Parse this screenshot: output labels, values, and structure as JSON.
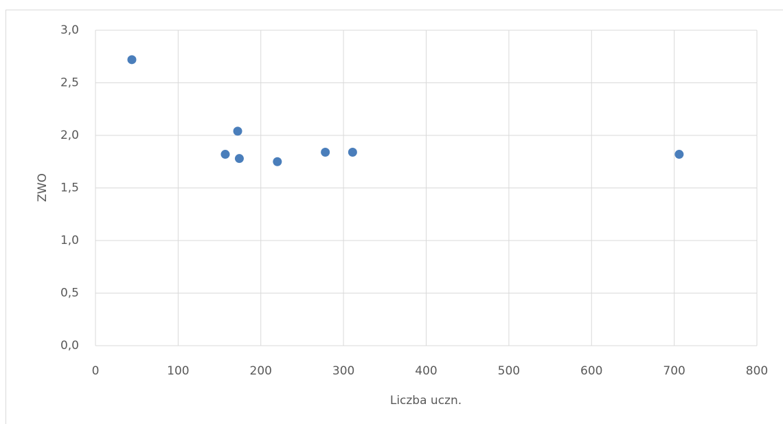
{
  "chart_data": {
    "type": "scatter",
    "x_label": "Liczba uczn.",
    "y_label": "ZWO",
    "x": [
      44,
      157,
      172,
      174,
      220,
      278,
      311,
      706
    ],
    "values": [
      2.72,
      1.82,
      2.04,
      1.78,
      1.75,
      1.84,
      1.84,
      1.82
    ],
    "color": "#4a7ebb",
    "xlim": [
      0,
      800
    ],
    "xticks": [
      0,
      100,
      200,
      300,
      400,
      500,
      600,
      700,
      800
    ],
    "ylim": [
      0,
      3
    ],
    "yticks": [
      {
        "value": 0,
        "label": "0,0"
      },
      {
        "value": 0.5,
        "label": "0,5"
      },
      {
        "value": 1,
        "label": "1,0"
      },
      {
        "value": 1.5,
        "label": "1,5"
      },
      {
        "value": 2,
        "label": "2,0"
      },
      {
        "value": 2.5,
        "label": "2,5"
      },
      {
        "value": 3,
        "label": "3,0"
      }
    ],
    "grid": true
  }
}
